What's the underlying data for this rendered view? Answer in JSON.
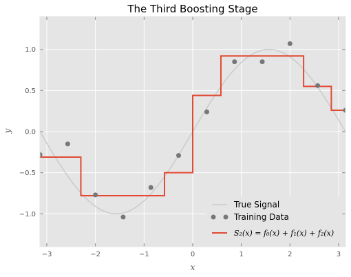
{
  "chart_data": {
    "type": "line",
    "title": "The Third Boosting Stage",
    "xlabel": "x",
    "ylabel": "y",
    "xlim": [
      -3.14159,
      3.14159
    ],
    "ylim": [
      -1.4,
      1.4
    ],
    "grid": true,
    "background": "#e5e5e5",
    "x_ticks": [
      -3,
      -2,
      -1,
      0,
      1,
      2,
      3
    ],
    "x_tick_labels": [
      "−3",
      "−2",
      "−1",
      "0",
      "1",
      "2",
      "3"
    ],
    "y_ticks": [
      -1.0,
      -0.5,
      0.0,
      0.5,
      1.0
    ],
    "y_tick_labels": [
      "−1.0",
      "−0.5",
      "0.0",
      "0.5",
      "1.0"
    ],
    "legend_position": "bottom-right",
    "series": [
      {
        "name": "True Signal",
        "kind": "line",
        "color": "#cccccc",
        "function": "sin(x)"
      },
      {
        "name": "Training Data",
        "kind": "scatter",
        "color": "#777777",
        "points": [
          [
            -3.14,
            -0.28
          ],
          [
            -2.57,
            -0.15
          ],
          [
            -2.0,
            -0.77
          ],
          [
            -1.43,
            -1.04
          ],
          [
            -0.86,
            -0.68
          ],
          [
            -0.29,
            -0.29
          ],
          [
            0.29,
            0.24
          ],
          [
            0.86,
            0.85
          ],
          [
            1.43,
            0.85
          ],
          [
            2.0,
            1.07
          ],
          [
            2.57,
            0.56
          ],
          [
            3.14,
            0.26
          ]
        ]
      },
      {
        "name": "S_2(x) = f_0(x) + f_1(x) + f_2(x)",
        "legend_label": "S₂(x) = f₀(x) + f₁(x) + f₂(x)",
        "kind": "step",
        "color": "#e24a33",
        "segments": [
          {
            "x0": -3.14159,
            "x1": -2.3,
            "y": -0.31
          },
          {
            "x0": -2.3,
            "x1": -0.58,
            "y": -0.78
          },
          {
            "x0": -0.58,
            "x1": 0.0,
            "y": -0.5
          },
          {
            "x0": 0.0,
            "x1": 0.58,
            "y": 0.44
          },
          {
            "x0": 0.58,
            "x1": 2.28,
            "y": 0.92
          },
          {
            "x0": 2.28,
            "x1": 2.85,
            "y": 0.55
          },
          {
            "x0": 2.85,
            "x1": 3.14159,
            "y": 0.26
          }
        ]
      }
    ]
  }
}
